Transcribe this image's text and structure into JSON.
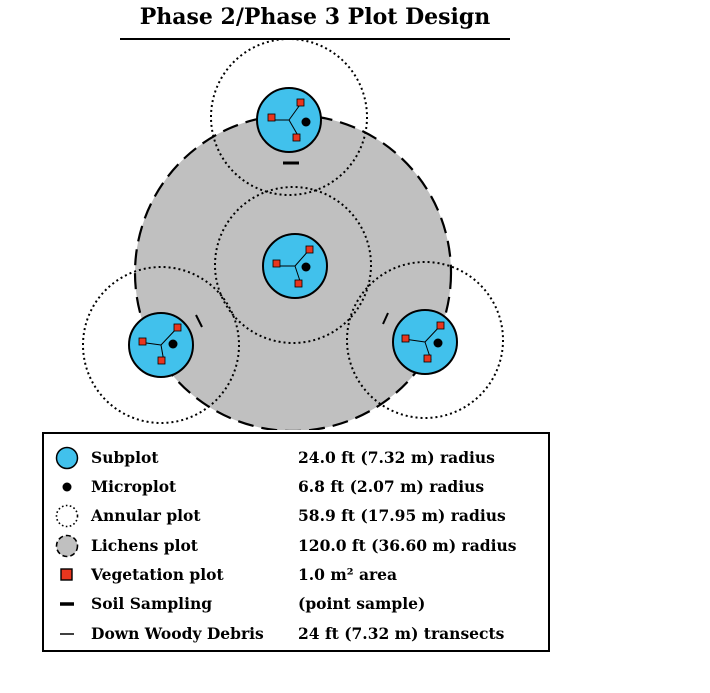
{
  "title": "Phase 2/Phase 3 Plot Design",
  "colors": {
    "subplot": "#41c1ec",
    "lichens": "#c0c0c0",
    "vegetation": "#e8361e",
    "line": "#000000"
  },
  "legend": [
    {
      "symbol": "subplot-icon",
      "name": "Subplot",
      "value": "24.0 ft  (7.32 m) radius"
    },
    {
      "symbol": "microplot-icon",
      "name": "Microplot",
      "value": "6.8 ft  (2.07 m) radius"
    },
    {
      "symbol": "annular-plot-icon",
      "name": "Annular plot",
      "value": "58.9 ft  (17.95 m) radius"
    },
    {
      "symbol": "lichens-plot-icon",
      "name": "Lichens plot",
      "value": "120.0 ft  (36.60 m) radius"
    },
    {
      "symbol": "vegetation-plot-icon",
      "name": "Vegetation plot",
      "value": "1.0 m² area"
    },
    {
      "symbol": "soil-sampling-icon",
      "name": "Soil Sampling",
      "value": "(point sample)"
    },
    {
      "symbol": "down-woody-debris-icon",
      "name": "Down Woody Debris",
      "value": "24 ft (7.32 m) transects"
    }
  ]
}
